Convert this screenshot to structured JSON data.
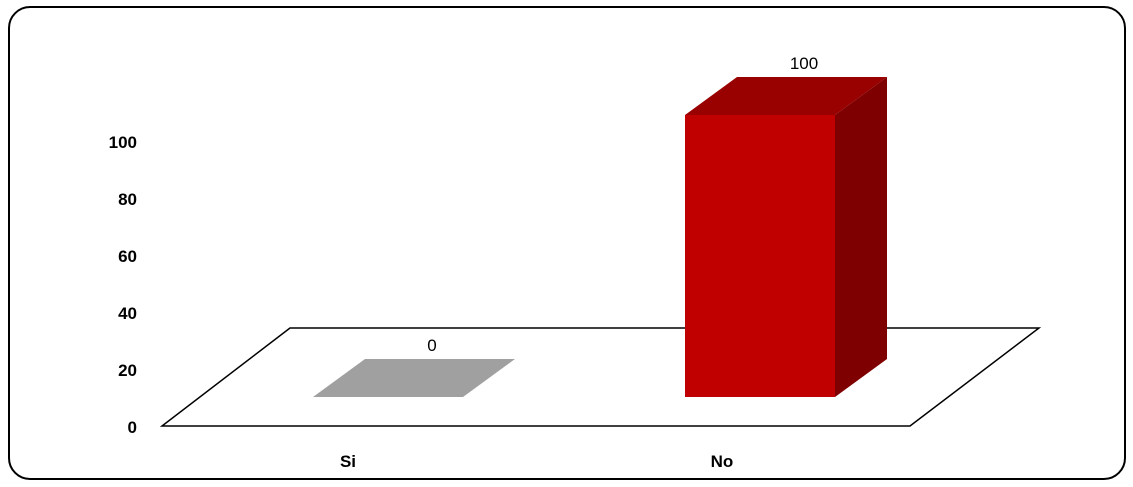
{
  "chart_data": {
    "type": "bar",
    "categories": [
      "Si",
      "No"
    ],
    "values": [
      0,
      100
    ],
    "ylim": [
      0,
      100
    ],
    "yticks": [
      "0",
      "20",
      "40",
      "60",
      "80",
      "100"
    ],
    "data_labels": [
      "0",
      "100"
    ],
    "bar_colors": [
      "#a0a0a0",
      "#c00000"
    ],
    "bar_side_colors": [
      "#a0a0a0",
      "#7f0000"
    ],
    "bar_top_colors": [
      "#a0a0a0",
      "#990000"
    ],
    "style": "3d-column",
    "grid": false,
    "legend": "none"
  }
}
